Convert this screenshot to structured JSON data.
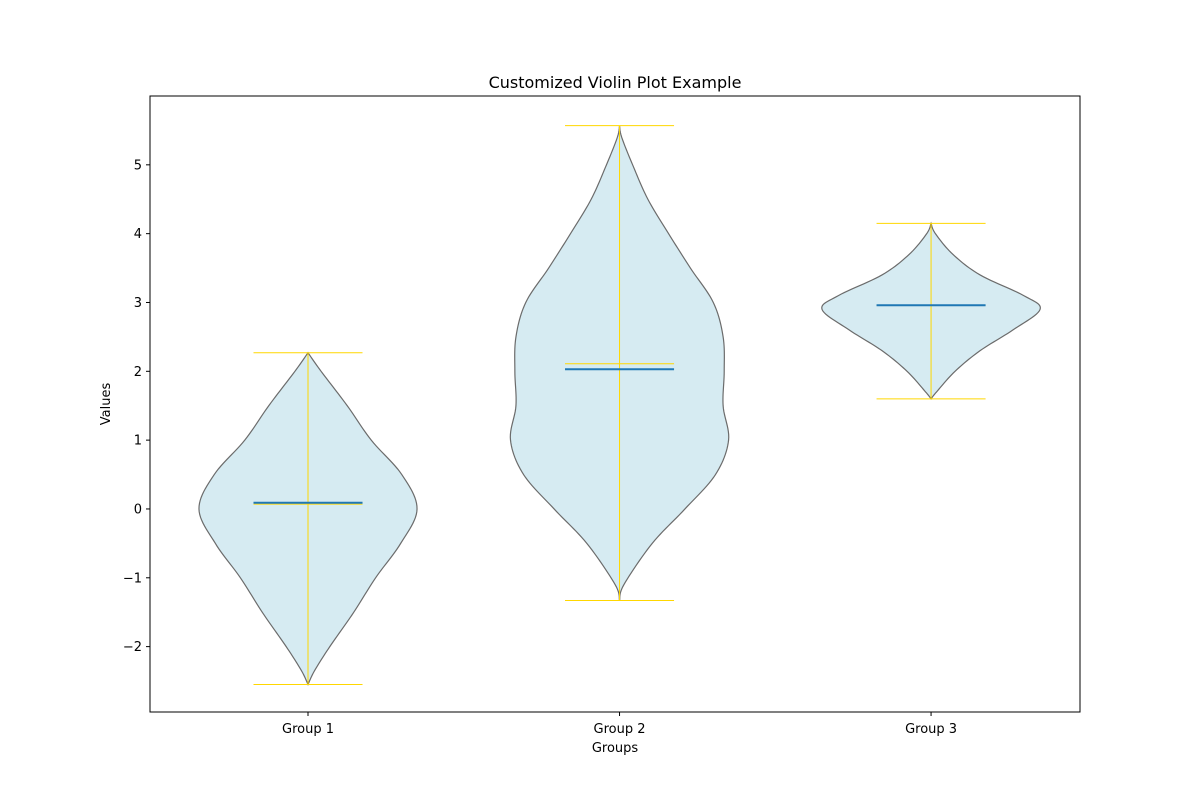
{
  "chart_data": {
    "type": "violin",
    "title": "Customized Violin Plot Example",
    "xlabel": "Groups",
    "ylabel": "Values",
    "ylim": [
      -2.95,
      6.0
    ],
    "yticks": [
      -2,
      -1,
      0,
      1,
      2,
      3,
      4,
      5
    ],
    "ytick_labels": [
      "−2",
      "−1",
      "0",
      "1",
      "2",
      "3",
      "4",
      "5"
    ],
    "grid": false,
    "legend": "none",
    "categories": [
      "Group 1",
      "Group 2",
      "Group 3"
    ],
    "groups": [
      {
        "name": "Group 1",
        "min": -2.55,
        "max": 2.27,
        "mean": 0.07,
        "median": 0.09,
        "density": [
          [
            -2.55,
            0.0
          ],
          [
            -2.35,
            0.06
          ],
          [
            -2.0,
            0.2
          ],
          [
            -1.5,
            0.42
          ],
          [
            -1.0,
            0.62
          ],
          [
            -0.5,
            0.85
          ],
          [
            0.0,
            1.0
          ],
          [
            0.5,
            0.86
          ],
          [
            1.0,
            0.58
          ],
          [
            1.5,
            0.36
          ],
          [
            2.0,
            0.12
          ],
          [
            2.27,
            0.0
          ]
        ]
      },
      {
        "name": "Group 2",
        "min": -1.33,
        "max": 5.57,
        "mean": 2.11,
        "median": 2.03,
        "density": [
          [
            -1.33,
            0.0
          ],
          [
            -1.1,
            0.04
          ],
          [
            -0.5,
            0.3
          ],
          [
            0.0,
            0.6
          ],
          [
            0.5,
            0.88
          ],
          [
            1.0,
            1.0
          ],
          [
            1.5,
            0.95
          ],
          [
            2.0,
            0.96
          ],
          [
            2.5,
            0.95
          ],
          [
            3.0,
            0.86
          ],
          [
            3.5,
            0.65
          ],
          [
            4.0,
            0.45
          ],
          [
            4.5,
            0.26
          ],
          [
            5.0,
            0.12
          ],
          [
            5.4,
            0.02
          ],
          [
            5.57,
            0.0
          ]
        ]
      },
      {
        "name": "Group 3",
        "min": 1.6,
        "max": 4.15,
        "mean": 2.96,
        "median": 2.96,
        "density": [
          [
            1.6,
            0.0
          ],
          [
            1.7,
            0.05
          ],
          [
            2.0,
            0.22
          ],
          [
            2.3,
            0.45
          ],
          [
            2.6,
            0.75
          ],
          [
            2.9,
            1.0
          ],
          [
            3.1,
            0.85
          ],
          [
            3.4,
            0.45
          ],
          [
            3.7,
            0.2
          ],
          [
            4.0,
            0.04
          ],
          [
            4.15,
            0.0
          ]
        ]
      }
    ],
    "colors": {
      "body_fill": "#add8e6",
      "body_edge": "#6b6b6b",
      "extrema_and_bars": "#ffd700",
      "median_line": "#1f77b4"
    }
  }
}
